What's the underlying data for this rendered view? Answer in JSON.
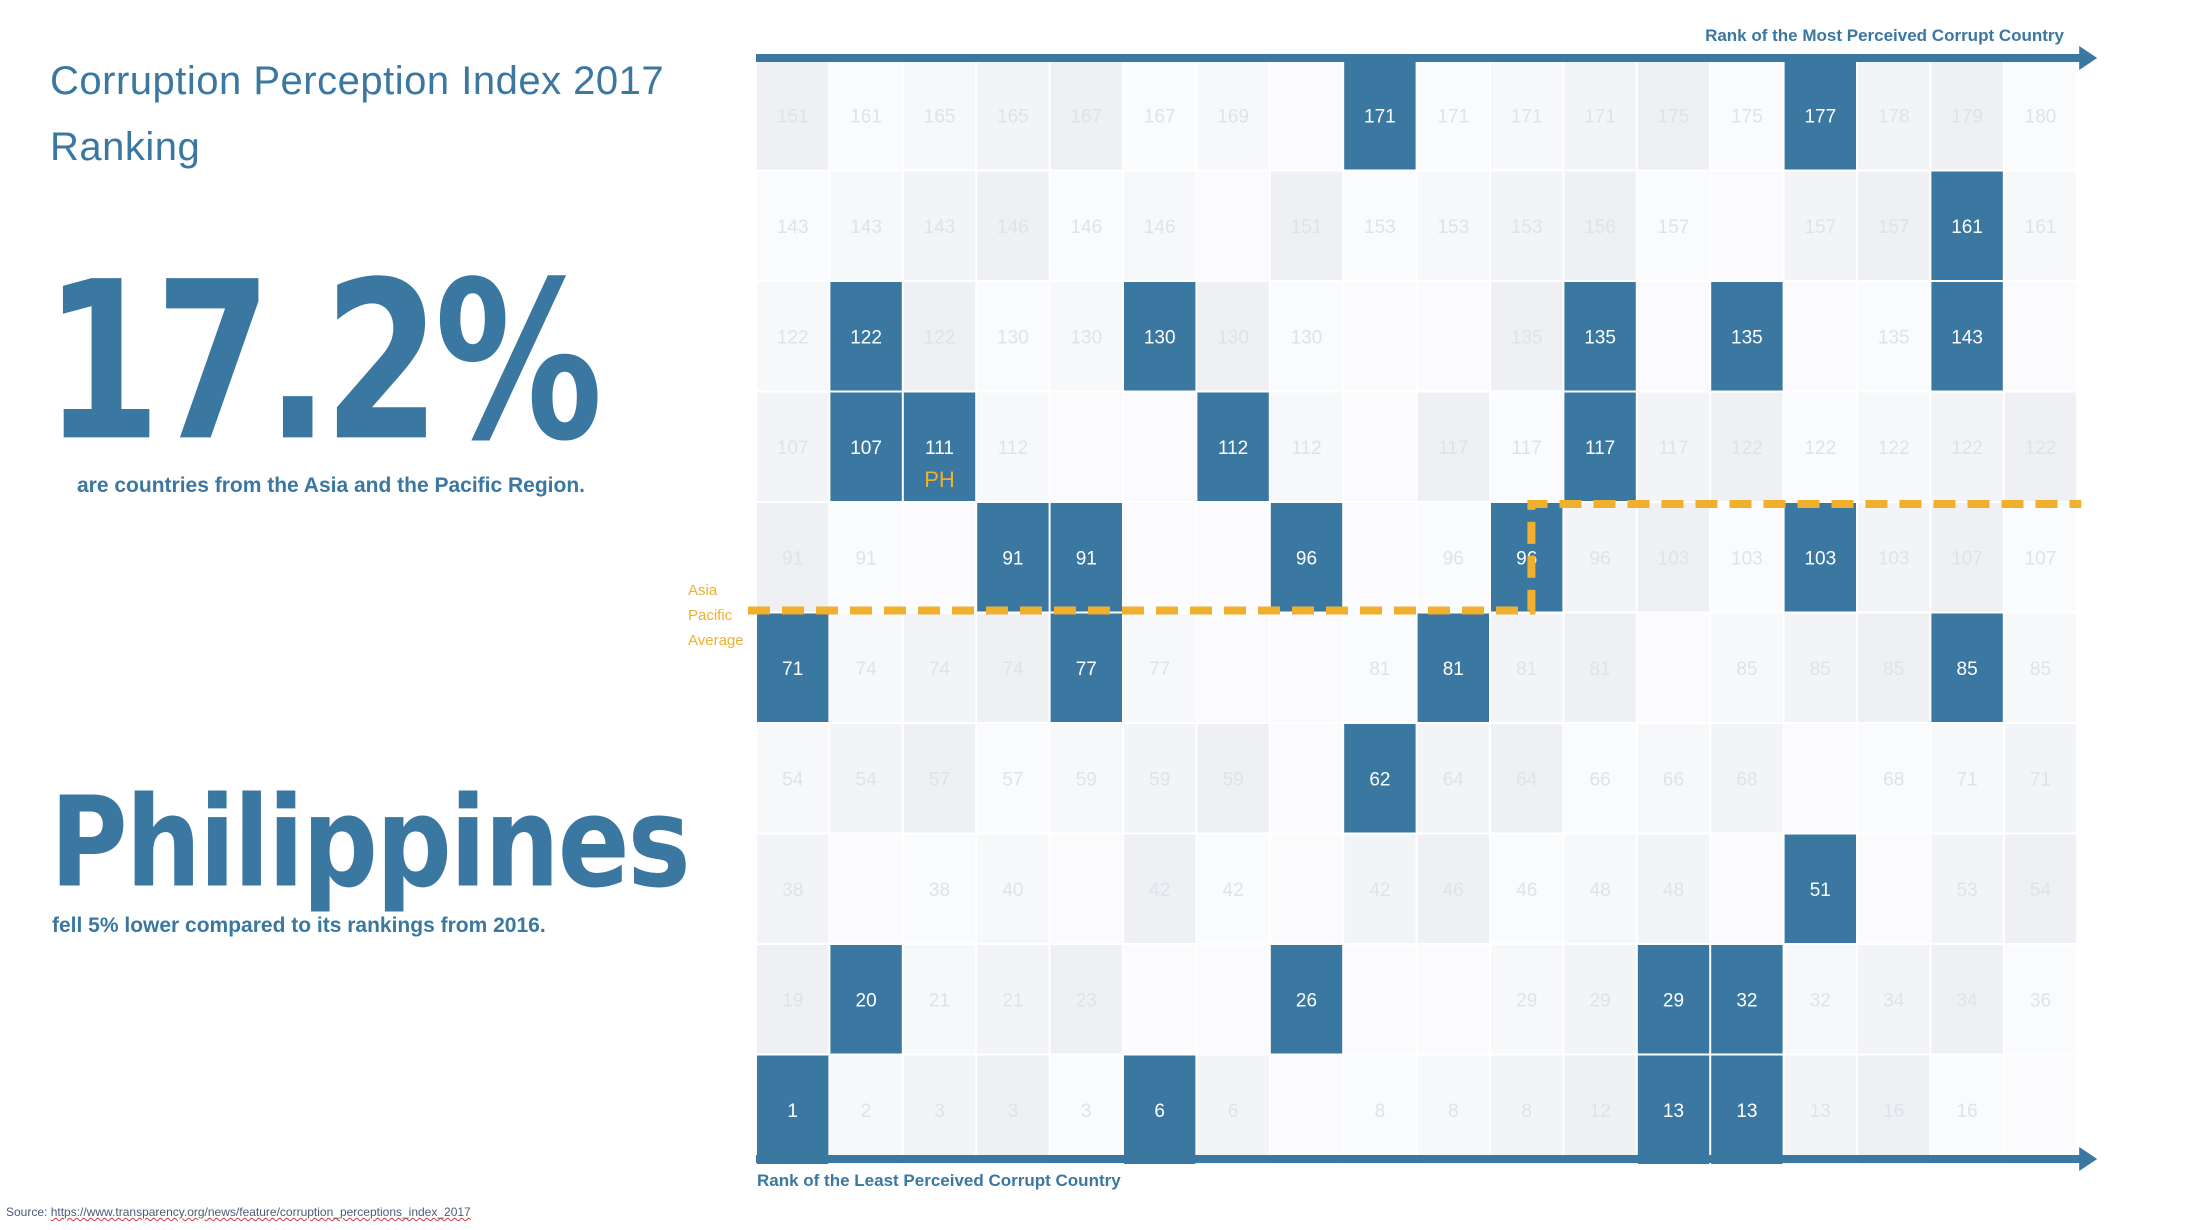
{
  "header": {
    "title_line1": "Corruption Perception Index 2017",
    "title_line2": "Ranking"
  },
  "stat": {
    "value": "17.2%",
    "caption": "are countries from the Asia and the Pacific Region."
  },
  "country": {
    "name": "Philippines",
    "caption": "fell 5% lower compared to its rankings from 2016.",
    "marker": "PH"
  },
  "source": {
    "prefix": "Source: ",
    "url": "https://www.transparency.org/news/feature/corruption_perceptions_index_2017"
  },
  "colors": {
    "highlight": "#3a77a1",
    "average_line": "#f0b02e",
    "background_cell": "#f1f2f6"
  },
  "chart_data": {
    "type": "heatmap",
    "x_axis_label_top": "Rank of the Most Perceived Corrupt Country",
    "x_axis_label_bottom": "Rank of the Least Perceived Corrupt Country",
    "average_label": [
      "Asia",
      "Pacific",
      "Average"
    ],
    "columns": 18,
    "rows_top_to_bottom": [
      [
        "151",
        "161",
        "165",
        "165",
        "167",
        "167",
        "169",
        "",
        "171",
        "171",
        "171",
        "171",
        "175",
        "175",
        "177",
        "178",
        "179",
        "180"
      ],
      [
        "143",
        "143",
        "143",
        "146",
        "146",
        "146",
        "",
        "151",
        "153",
        "153",
        "153",
        "156",
        "157",
        "",
        "157",
        "157",
        "161",
        "161"
      ],
      [
        "122",
        "122",
        "122",
        "130",
        "130",
        "130",
        "130",
        "130",
        "",
        "",
        "135",
        "135",
        "",
        "135",
        "",
        "135",
        "143",
        ""
      ],
      [
        "107",
        "107",
        "111",
        "112",
        "",
        "",
        "112",
        "112",
        "",
        "117",
        "117",
        "117",
        "117",
        "122",
        "122",
        "122",
        "122",
        "122"
      ],
      [
        "91",
        "91",
        "",
        "91",
        "91",
        "",
        "",
        "96",
        "",
        "96",
        "96",
        "96",
        "103",
        "103",
        "103",
        "103",
        "107",
        "107"
      ],
      [
        "71",
        "74",
        "74",
        "74",
        "77",
        "77",
        "",
        "",
        "81",
        "81",
        "81",
        "81",
        "",
        "85",
        "85",
        "85",
        "85",
        "85"
      ],
      [
        "54",
        "54",
        "57",
        "57",
        "59",
        "59",
        "59",
        "",
        "62",
        "64",
        "64",
        "66",
        "66",
        "68",
        "",
        "68",
        "71",
        "71"
      ],
      [
        "38",
        "",
        "38",
        "40",
        "",
        "42",
        "42",
        "",
        "42",
        "46",
        "46",
        "48",
        "48",
        "",
        "51",
        "",
        "53",
        "54"
      ],
      [
        "19",
        "20",
        "21",
        "21",
        "23",
        "",
        "",
        "26",
        "",
        "",
        "29",
        "29",
        "29",
        "32",
        "32",
        "34",
        "34",
        "36"
      ],
      [
        "1",
        "2",
        "3",
        "3",
        "3",
        "6",
        "6",
        "",
        "8",
        "8",
        "8",
        "12",
        "13",
        "13",
        "13",
        "16",
        "16",
        ""
      ]
    ],
    "highlighted_cells": [
      [
        0,
        8
      ],
      [
        0,
        14
      ],
      [
        1,
        16
      ],
      [
        2,
        1
      ],
      [
        2,
        5
      ],
      [
        2,
        11
      ],
      [
        2,
        13
      ],
      [
        2,
        16
      ],
      [
        3,
        1
      ],
      [
        3,
        2
      ],
      [
        3,
        6
      ],
      [
        3,
        11
      ],
      [
        4,
        3
      ],
      [
        4,
        4
      ],
      [
        4,
        7
      ],
      [
        4,
        10
      ],
      [
        4,
        14
      ],
      [
        5,
        0
      ],
      [
        5,
        4
      ],
      [
        5,
        9
      ],
      [
        5,
        16
      ],
      [
        6,
        8
      ],
      [
        7,
        14
      ],
      [
        8,
        1
      ],
      [
        8,
        7
      ],
      [
        8,
        12
      ],
      [
        8,
        13
      ],
      [
        9,
        0
      ],
      [
        9,
        5
      ],
      [
        9,
        12
      ],
      [
        9,
        13
      ]
    ],
    "philippines_cell": [
      3,
      2
    ],
    "average_line": {
      "left_section_row_boundary": "between rows 4 and 5",
      "right_section_row_boundary": "between rows 3 and 4",
      "step_after_column": 10
    }
  }
}
